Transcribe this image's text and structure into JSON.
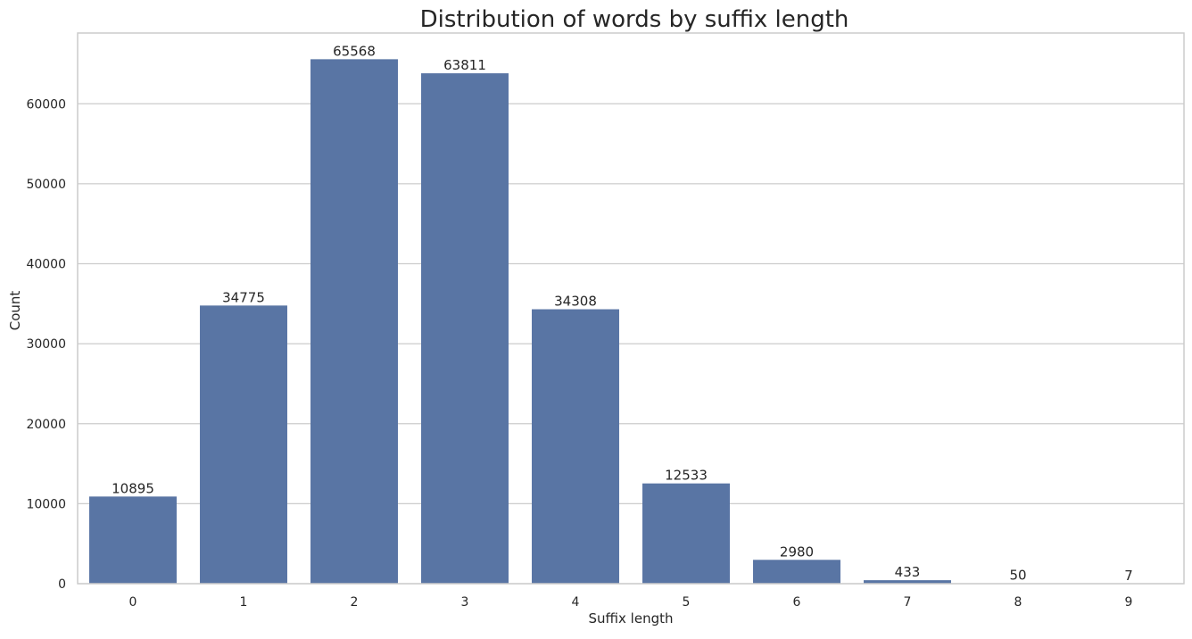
{
  "chart_data": {
    "type": "bar",
    "title": "Distribution of words by suffix length",
    "xlabel": "Suffix length",
    "ylabel": "Count",
    "categories": [
      "0",
      "1",
      "2",
      "3",
      "4",
      "5",
      "6",
      "7",
      "8",
      "9"
    ],
    "values": [
      10895,
      34775,
      65568,
      63811,
      34308,
      12533,
      2980,
      433,
      50,
      7
    ],
    "data_labels": [
      "10895",
      "34775",
      "65568",
      "63811",
      "34308",
      "12533",
      "2980",
      "433",
      "50",
      "7"
    ],
    "yticks": [
      0,
      10000,
      20000,
      30000,
      40000,
      50000,
      60000
    ],
    "ylim": [
      0,
      68845
    ],
    "grid": "horizontal",
    "bar_color": "#5975a4",
    "grid_color": "#cccccc",
    "frame_color": "#cccccc",
    "text_color": "#262626",
    "background": "#ffffff"
  }
}
